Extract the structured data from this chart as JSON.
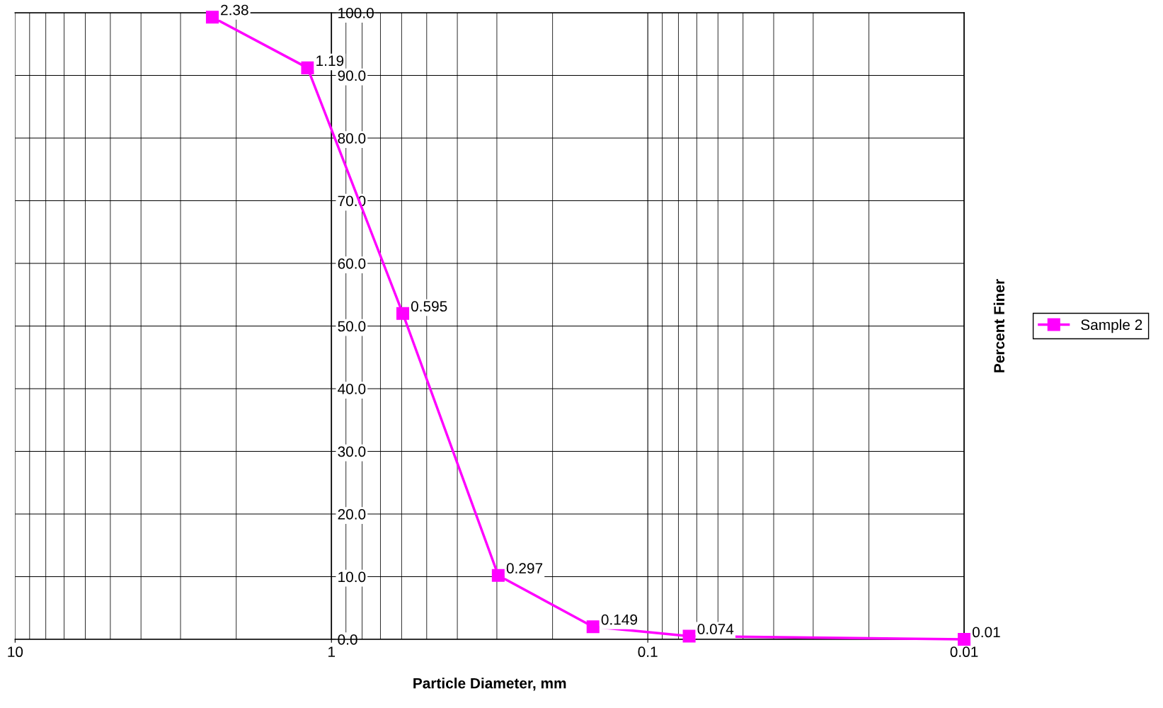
{
  "chart_data": {
    "type": "line",
    "xlabel": "Particle Diameter, mm",
    "ylabel": "Percent Finer",
    "x": [
      2.38,
      1.19,
      0.595,
      0.297,
      0.149,
      0.074,
      0.01
    ],
    "series": [
      {
        "name": "Sample 2",
        "color": "#ff00ff",
        "values": [
          99.3,
          91.2,
          52.0,
          10.2,
          2.0,
          0.5,
          0.0
        ]
      }
    ],
    "annotations": [
      {
        "text": "2.38",
        "x": 2.38,
        "y": 99.3
      },
      {
        "text": "1.19",
        "x": 1.19,
        "y": 91.2
      },
      {
        "text": "0.595",
        "x": 0.595,
        "y": 52.0
      },
      {
        "text": "0.297",
        "x": 0.297,
        "y": 10.2
      },
      {
        "text": "0.149",
        "x": 0.149,
        "y": 2.0
      },
      {
        "text": "0.074",
        "x": 0.074,
        "y": 0.5
      },
      {
        "text": "0.01",
        "x": 0.01,
        "y": 0.0
      }
    ],
    "log": "x",
    "xlim": [
      10,
      0.01
    ],
    "xticks": [
      10,
      1,
      0.1,
      0.01
    ],
    "ylim": [
      0,
      100
    ],
    "yticks": [
      {
        "value": 0,
        "label": "0.0"
      },
      {
        "value": 10,
        "label": "10.0"
      },
      {
        "value": 20,
        "label": "20.0"
      },
      {
        "value": 30,
        "label": "30.0"
      },
      {
        "value": 40,
        "label": "40.0"
      },
      {
        "value": 50,
        "label": "50.0"
      },
      {
        "value": 60,
        "label": "60.0"
      },
      {
        "value": 70,
        "label": "70.0"
      },
      {
        "value": 80,
        "label": "80.0"
      },
      {
        "value": 90,
        "label": "90.0"
      },
      {
        "value": 100,
        "label": "100.0"
      }
    ],
    "grid": true,
    "legend": "right",
    "marker": "square",
    "line_style": "solid"
  }
}
